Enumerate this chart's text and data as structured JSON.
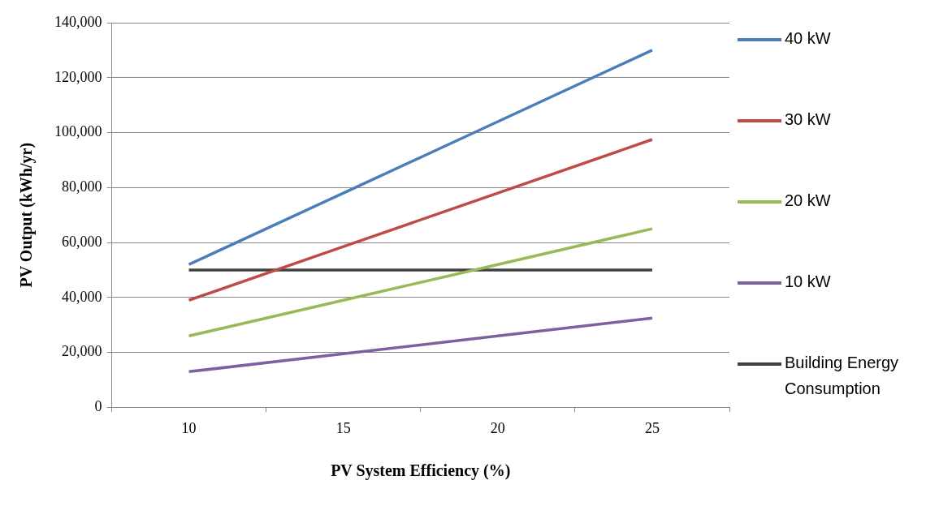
{
  "chart_data": {
    "type": "line",
    "xlabel": "PV System Efficiency (%)",
    "ylabel": "PV Output (kWh/yr)",
    "categories": [
      "10",
      "15",
      "20",
      "25"
    ],
    "series": [
      {
        "name": "40 kW",
        "color": "#4a7ebb",
        "values": [
          52000,
          78000,
          104000,
          130000
        ]
      },
      {
        "name": "30 kW",
        "color": "#be4b48",
        "values": [
          39000,
          58500,
          78000,
          97500
        ]
      },
      {
        "name": "20 kW",
        "color": "#98b954",
        "values": [
          26000,
          39000,
          52000,
          65000
        ]
      },
      {
        "name": "10 kW",
        "color": "#7d60a0",
        "values": [
          13000,
          19500,
          26000,
          32500
        ]
      },
      {
        "name": "Building Energy Consumption",
        "color": "#404040",
        "values": [
          50000,
          50000,
          50000,
          50000
        ]
      }
    ],
    "ylim": [
      0,
      140000
    ],
    "yticks": [
      {
        "value": 0,
        "label": "0"
      },
      {
        "value": 20000,
        "label": "20,000"
      },
      {
        "value": 40000,
        "label": "40,000"
      },
      {
        "value": 60000,
        "label": "60,000"
      },
      {
        "value": 80000,
        "label": "80,000"
      },
      {
        "value": 100000,
        "label": "100,000"
      },
      {
        "value": 120000,
        "label": "120,000"
      },
      {
        "value": 140000,
        "label": "140,000"
      }
    ],
    "grid": "y",
    "legend": "right",
    "marker": "none",
    "line_style": "solid"
  }
}
